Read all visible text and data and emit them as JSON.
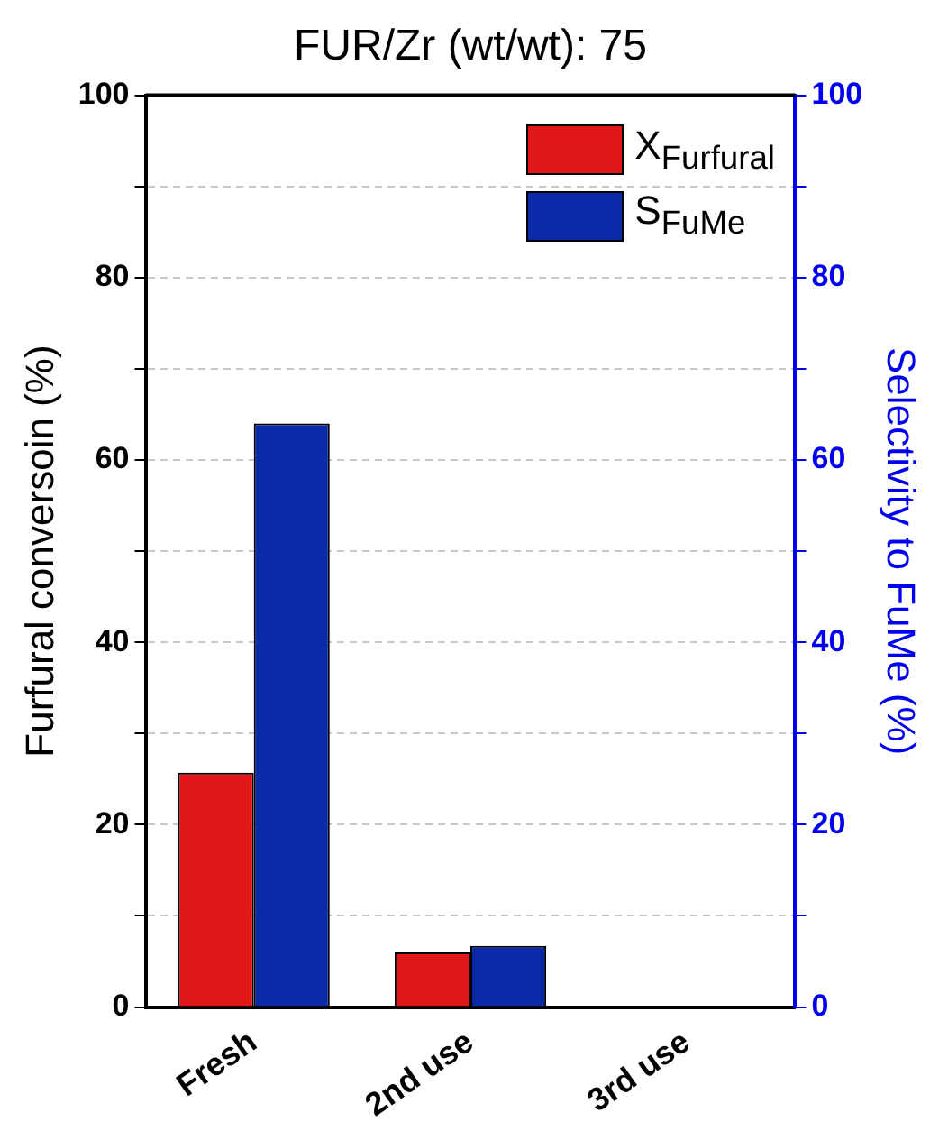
{
  "chart_data": {
    "type": "bar",
    "title": "FUR/Zr (wt/wt): 75",
    "ylabel": "Furfural conversoin (%)",
    "y2label": "Selectivity to FuMe (%)",
    "categories": [
      "Fresh",
      "2nd use",
      "3rd use"
    ],
    "series": [
      {
        "name": "X$_{Furfural}$",
        "color": "#e01818",
        "values": [
          25.7,
          6.0,
          0
        ]
      },
      {
        "name": "S$_{FuMe}$",
        "color": "#0a2aa8",
        "values": [
          64.0,
          6.7,
          0
        ],
        "axis": "y2"
      }
    ],
    "ylim": [
      0,
      100
    ],
    "yticks": [
      0,
      {
        "value": 10,
        "label": null
      },
      20,
      {
        "value": 30,
        "label": null
      },
      40,
      {
        "value": 50,
        "label": null
      },
      60,
      {
        "value": 70,
        "label": null
      },
      80,
      {
        "value": 90,
        "label": null
      },
      100
    ],
    "y2lim": [
      0,
      100
    ],
    "y2ticks": [
      0,
      {
        "value": 10,
        "label": null
      },
      20,
      {
        "value": 30,
        "label": null
      },
      40,
      {
        "value": 50,
        "label": null
      },
      60,
      {
        "value": 70,
        "label": null
      },
      80,
      {
        "value": 90,
        "label": null
      },
      100
    ],
    "grid": "y",
    "legend": "top right"
  }
}
